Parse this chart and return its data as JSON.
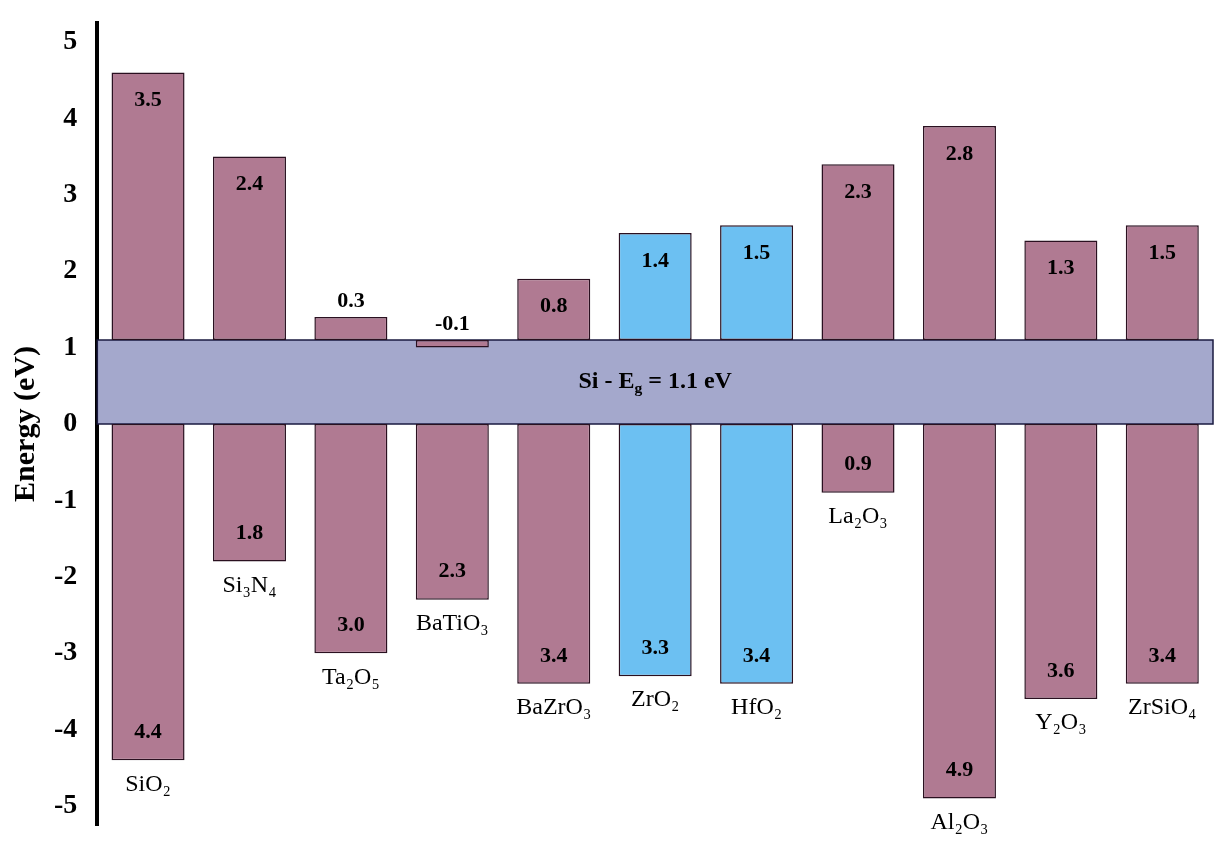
{
  "chart_data": {
    "type": "bar",
    "ylabel": "Energy (eV)",
    "categories": [
      "SiO₂",
      "Si₃N₄",
      "Ta₂O₅",
      "BaTiO₃",
      "BaZrO₃",
      "ZrO₂",
      "HfO₂",
      "La₂O₃",
      "Al₂O₃",
      "Y₂O₃",
      "ZrSiO₄"
    ],
    "series": [
      {
        "base": [
          1.1,
          1.1,
          1.1,
          1.1,
          1.1,
          1.1,
          1.1,
          1.1,
          1.1,
          1.1,
          1.1
        ],
        "values": [
          3.5,
          2.4,
          0.3,
          -0.1,
          0.8,
          1.4,
          1.5,
          2.3,
          2.8,
          1.3,
          1.5
        ],
        "value_labels": [
          "3.5",
          "2.4",
          "0.3",
          "-0.1",
          "0.8",
          "1.4",
          "1.5",
          "2.3",
          "2.8",
          "1.3",
          "1.5"
        ],
        "colors": [
          "#b07a92",
          "#b07a92",
          "#b07a92",
          "#b07a92",
          "#b07a92",
          "#6cc0f2",
          "#6cc0f2",
          "#b07a92",
          "#b07a92",
          "#b07a92",
          "#b07a92"
        ]
      },
      {
        "base": [
          0,
          0,
          0,
          0,
          0,
          0,
          0,
          0,
          0,
          0,
          0
        ],
        "values": [
          -4.4,
          -1.8,
          -3.0,
          -2.3,
          -3.4,
          -3.3,
          -3.4,
          -0.9,
          -4.9,
          -3.6,
          -3.4
        ],
        "value_labels": [
          "4.4",
          "1.8",
          "3.0",
          "2.3",
          "3.4",
          "3.3",
          "3.4",
          "0.9",
          "4.9",
          "3.6",
          "3.4"
        ],
        "colors": [
          "#b07a92",
          "#b07a92",
          "#b07a92",
          "#b07a92",
          "#b07a92",
          "#6cc0f2",
          "#6cc0f2",
          "#b07a92",
          "#b07a92",
          "#b07a92",
          "#b07a92"
        ]
      }
    ],
    "bands": [
      {
        "axis": "y",
        "from": 0,
        "to": 1.1,
        "label": "Si - E$_{g}$ = 1.1 eV",
        "color": "#a4a8cc"
      }
    ],
    "ylim": [
      -5.25,
      5.25
    ],
    "yticks": [
      -5,
      -4,
      -3,
      -2,
      -1,
      0,
      1,
      2,
      3,
      4,
      5
    ],
    "grid": false,
    "legend": false
  }
}
